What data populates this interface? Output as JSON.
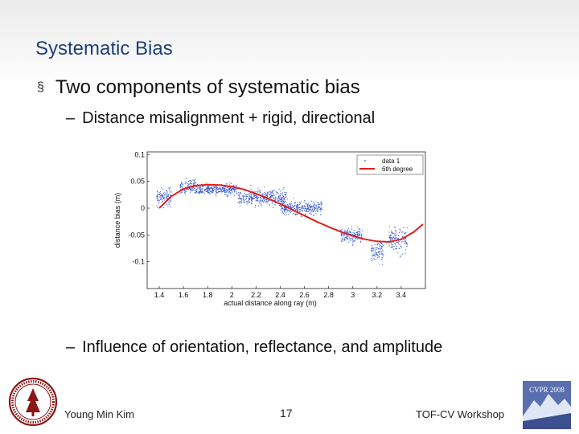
{
  "slide": {
    "title": "Systematic Bias",
    "bullet_main": "Two components of systematic bias",
    "sub_bullet_1": "Distance misalignment + rigid, directional",
    "sub_bullet_2": "Influence of orientation, reflectance, and amplitude",
    "bullet_marker": "§",
    "dash": "–"
  },
  "footer": {
    "author": "Young Min Kim",
    "page": "17",
    "venue": "TOF-CV Workshop",
    "logo_text": "CVPR 2008"
  },
  "colors": {
    "title": "#1f3f7a",
    "scatter": "#3a5bd0",
    "fit_line": "#e0201c",
    "seal": "#8c1515",
    "logo_bg": "#5a6fb0"
  },
  "chart_data": {
    "type": "scatter",
    "xlabel": "actual distance along ray (m)",
    "ylabel": "distance bias (m)",
    "xlim": [
      1.3,
      3.6
    ],
    "ylim": [
      -0.15,
      0.105
    ],
    "xticks": [
      "1.4",
      "1.6",
      "1.8",
      "2",
      "2.2",
      "2.4",
      "2.6",
      "2.8",
      "3",
      "3.2",
      "3.4"
    ],
    "yticks": [
      "0.1",
      "0.05",
      "0",
      "-0.05",
      "-0.1"
    ],
    "legend": {
      "position": "top-right",
      "entries": [
        "data 1",
        "6th degree"
      ]
    },
    "series": [
      {
        "name": "data 1",
        "kind": "scatter",
        "clusters": [
          {
            "x_range": [
              1.38,
              1.5
            ],
            "y_center": 0.02,
            "y_spread": 0.025
          },
          {
            "x_range": [
              1.57,
              1.7
            ],
            "y_center": 0.04,
            "y_spread": 0.02
          },
          {
            "x_range": [
              1.7,
              2.05
            ],
            "y_center": 0.035,
            "y_spread": 0.018
          },
          {
            "x_range": [
              2.05,
              2.45
            ],
            "y_center": 0.02,
            "y_spread": 0.025
          },
          {
            "x_range": [
              2.4,
              2.75
            ],
            "y_center": 0.0,
            "y_spread": 0.022
          },
          {
            "x_range": [
              2.9,
              3.08
            ],
            "y_center": -0.05,
            "y_spread": 0.025
          },
          {
            "x_range": [
              3.15,
              3.25
            ],
            "y_center": -0.08,
            "y_spread": 0.04
          },
          {
            "x_range": [
              3.3,
              3.45
            ],
            "y_center": -0.06,
            "y_spread": 0.04
          }
        ]
      },
      {
        "name": "6th degree",
        "kind": "line",
        "x": [
          1.4,
          1.5,
          1.6,
          1.7,
          1.8,
          1.9,
          2.0,
          2.1,
          2.2,
          2.3,
          2.4,
          2.5,
          2.6,
          2.7,
          2.8,
          2.9,
          3.0,
          3.1,
          3.2,
          3.3,
          3.4,
          3.5,
          3.58
        ],
        "y": [
          0.0,
          0.022,
          0.036,
          0.042,
          0.044,
          0.043,
          0.04,
          0.035,
          0.027,
          0.018,
          0.008,
          -0.003,
          -0.014,
          -0.025,
          -0.035,
          -0.044,
          -0.052,
          -0.058,
          -0.062,
          -0.063,
          -0.058,
          -0.045,
          -0.03
        ]
      }
    ],
    "grid": false
  }
}
